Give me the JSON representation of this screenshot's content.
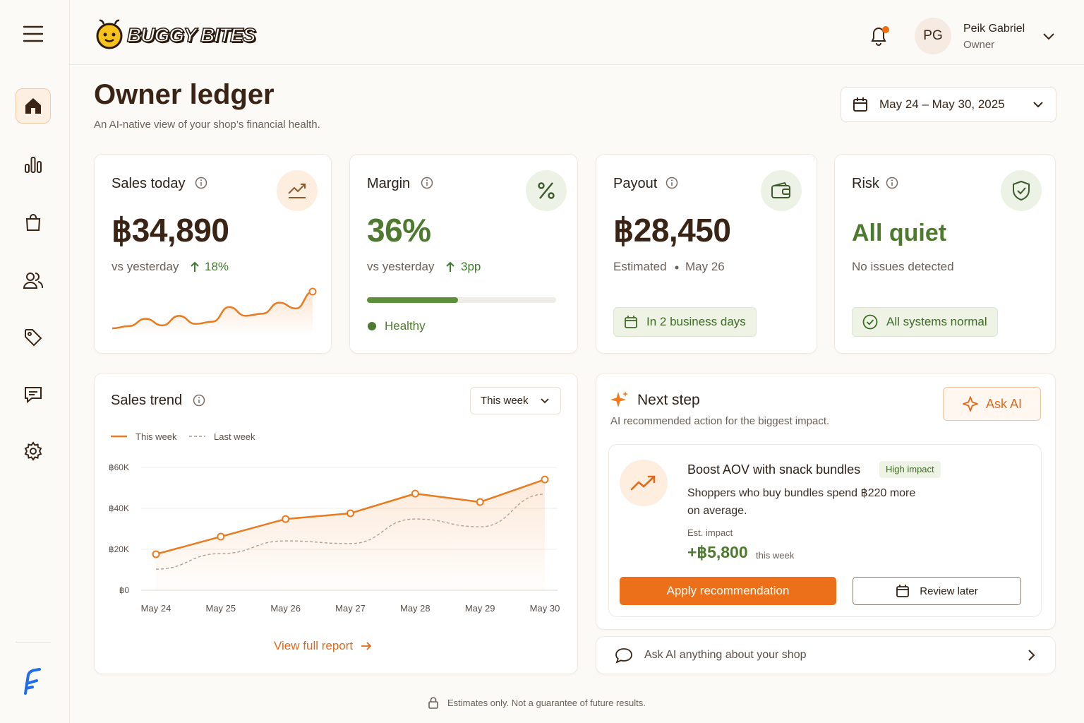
{
  "header": {
    "brand": "BUGGY BITES",
    "user_initials": "PG",
    "user_name": "Peik Gabriel",
    "user_role": "Owner"
  },
  "page": {
    "title": "Owner ledger",
    "subtitle": "An AI-native view of your shop’s financial health.",
    "date_range": "May 24 – May 30, 2025"
  },
  "cards": {
    "sales": {
      "title": "Sales today",
      "value": "฿34,890",
      "comparison": "vs yesterday",
      "change": "18%",
      "sparkline": [
        3,
        6,
        16,
        7,
        20,
        9,
        12,
        32,
        20,
        23,
        38,
        30,
        53
      ]
    },
    "margin": {
      "title": "Margin",
      "value": "36%",
      "comparison": "vs yesterday",
      "change": "3pp",
      "progress": 48,
      "status": "Healthy"
    },
    "payout": {
      "title": "Payout",
      "value": "฿28,450",
      "status": "Estimated",
      "date": "May 26",
      "badge": "In 2 business days"
    },
    "risk": {
      "title": "Risk",
      "value": "All quiet",
      "note": "No issues detected",
      "badge": "All systems normal"
    }
  },
  "chart_data": {
    "type": "line",
    "title": "Sales trend",
    "period": "This week",
    "categories": [
      "May 24",
      "May 25",
      "May 26",
      "May 27",
      "May 28",
      "May 29",
      "May 30"
    ],
    "series": [
      {
        "name": "This week",
        "color": "#ea7a1e",
        "style": "solid",
        "markers": true,
        "area": true,
        "values": [
          17600,
          26200,
          34800,
          37600,
          47200,
          43100,
          54100
        ]
      },
      {
        "name": "Last week",
        "color": "#a99c90",
        "style": "dashed",
        "markers": false,
        "area": false,
        "values": [
          10300,
          17900,
          24100,
          22800,
          34800,
          31000,
          46900
        ]
      }
    ],
    "ylim": [
      0,
      60000
    ],
    "yticks": [
      {
        "value": 0,
        "label": "฿0"
      },
      {
        "value": 20000,
        "label": "฿20K"
      },
      {
        "value": 40000,
        "label": "฿40K"
      },
      {
        "value": 60000,
        "label": "฿60K"
      }
    ],
    "grid": true,
    "link": "View full report"
  },
  "next_step": {
    "title": "Next step",
    "subtitle": "AI recommended action for the biggest impact.",
    "ask_button": "Ask AI",
    "recommendation": {
      "title": "Boost AOV with snack bundles",
      "badge": "High impact",
      "body": "Shoppers who buy bundles spend ฿220 more on average.",
      "impact_label": "Est. impact",
      "impact_value": "+฿5,800",
      "impact_period": "this week",
      "primary_action": "Apply recommendation",
      "secondary_action": "Review later"
    }
  },
  "ask_bar": "Ask AI anything about your shop",
  "footer": "Estimates only. Not a guarantee of future results."
}
